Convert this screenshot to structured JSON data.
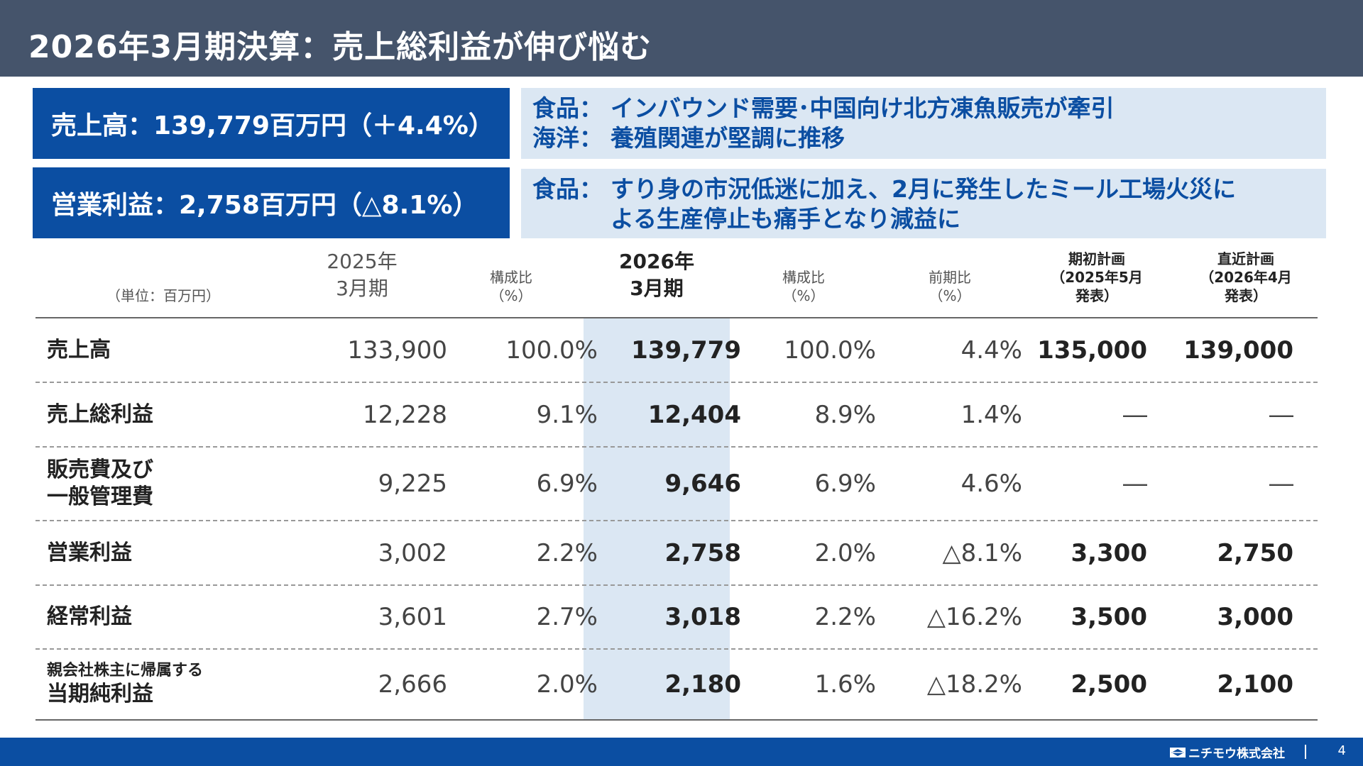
{
  "title": "2026年3月期決算：売上総利益が伸び悩む",
  "kpis": [
    {
      "text": "売上高：139,779百万円（＋4.4%）"
    },
    {
      "text": "営業利益：2,758百万円（△8.1%）"
    }
  ],
  "notes": {
    "n1_line1_prefix": "食品：",
    "n1_line1_text": "インバウンド需要･中国向け北方凍魚販売が牽引",
    "n1_line2_prefix": "海洋：",
    "n1_line2_text": "養殖関連が堅調に推移",
    "n2_line1_prefix": "食品：",
    "n2_line1_text": "すり身の市況低迷に加え、2月に発生したミール工場火災に",
    "n2_line2_text": "よる生産停止も痛手となり減益に"
  },
  "table": {
    "unit": "（単位：百万円）",
    "headers": {
      "prev_line1": "2025年",
      "prev_line2": "3月期",
      "ratio_line1": "構成比",
      "ratio_line2": "（%）",
      "cur_line1": "2026年",
      "cur_line2": "3月期",
      "ratio2_line1": "構成比",
      "ratio2_line2": "（%）",
      "yoy_line1": "前期比",
      "yoy_line2": "（%）",
      "plan1_line1": "期初計画",
      "plan1_line2": "（2025年5月",
      "plan1_line3": "発表）",
      "plan2_line1": "直近計画",
      "plan2_line2": "（2026年4月",
      "plan2_line3": "発表）"
    },
    "rows": [
      {
        "label": "売上高",
        "prev": "133,900",
        "prev_ratio": "100.0%",
        "cur": "139,779",
        "cur_ratio": "100.0%",
        "yoy": "4.4%",
        "plan_initial": "135,000",
        "plan_latest": "139,000"
      },
      {
        "label": "売上総利益",
        "prev": "12,228",
        "prev_ratio": "9.1%",
        "cur": "12,404",
        "cur_ratio": "8.9%",
        "yoy": "1.4%",
        "plan_initial": "―",
        "plan_latest": "―"
      },
      {
        "label_line1": "販売費及び",
        "label_line2": "一般管理費",
        "prev": "9,225",
        "prev_ratio": "6.9%",
        "cur": "9,646",
        "cur_ratio": "6.9%",
        "yoy": "4.6%",
        "plan_initial": "―",
        "plan_latest": "―"
      },
      {
        "label": "営業利益",
        "prev": "3,002",
        "prev_ratio": "2.2%",
        "cur": "2,758",
        "cur_ratio": "2.0%",
        "yoy": "△8.1%",
        "plan_initial": "3,300",
        "plan_latest": "2,750"
      },
      {
        "label": "経常利益",
        "prev": "3,601",
        "prev_ratio": "2.7%",
        "cur": "3,018",
        "cur_ratio": "2.2%",
        "yoy": "△16.2%",
        "plan_initial": "3,500",
        "plan_latest": "3,000"
      },
      {
        "label_line1": "親会社株主に帰属する",
        "label_line2": "当期純利益",
        "prev": "2,666",
        "prev_ratio": "2.0%",
        "cur": "2,180",
        "cur_ratio": "1.6%",
        "yoy": "△18.2%",
        "plan_initial": "2,500",
        "plan_latest": "2,100"
      }
    ]
  },
  "footer": {
    "company": "ニチモウ株式会社",
    "page": "4"
  },
  "colors": {
    "title_bar": "#45546b",
    "accent_blue": "#0b4ea2",
    "light_blue": "#dbe7f3"
  }
}
